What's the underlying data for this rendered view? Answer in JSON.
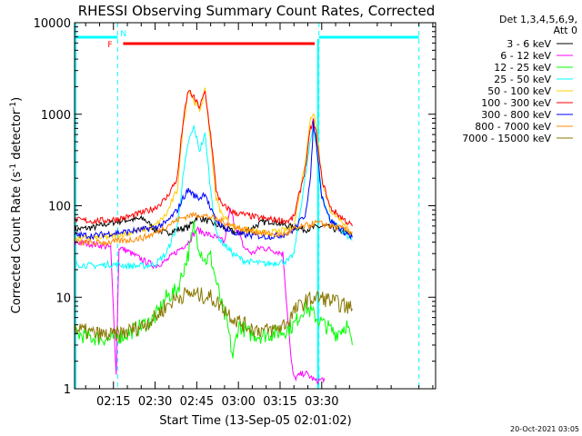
{
  "chart_data": {
    "type": "line",
    "title": "RHESSI Observing Summary Count Rates, Corrected",
    "xlabel": "Start Time (13-Sep-05 02:01:02)",
    "ylabel": "Corrected Count Rate (s",
    "ylabel_sup1": "-1",
    "ylabel_mid": " detector",
    "ylabel_sup2": "-1",
    "ylabel_end": ")",
    "yscale": "log",
    "ylim": [
      1,
      10000
    ],
    "xlim_min": [
      1,
      131
    ],
    "x_unit": "minutes from 02:00",
    "x_ticks": [
      {
        "min": 15,
        "label": "02:15"
      },
      {
        "min": 30,
        "label": "02:30"
      },
      {
        "min": 45,
        "label": "02:45"
      },
      {
        "min": 60,
        "label": "03:00"
      },
      {
        "min": 75,
        "label": "03:15"
      },
      {
        "min": 90,
        "label": "03:30"
      }
    ],
    "y_ticks": [
      {
        "value": 1,
        "label": "1"
      },
      {
        "value": 10,
        "label": "10"
      },
      {
        "value": 100,
        "label": "100"
      },
      {
        "value": 1000,
        "label": "1000"
      },
      {
        "value": 10000,
        "label": "10000"
      }
    ],
    "legend_header": [
      "Det 1,3,4,5,6,9,",
      "Att 0"
    ],
    "legend_position": "right",
    "series": [
      {
        "name": "3 - 6 keV",
        "color": "#000000",
        "points": [
          [
            1,
            55
          ],
          [
            8,
            58
          ],
          [
            14,
            65
          ],
          [
            20,
            70
          ],
          [
            26,
            72
          ],
          [
            30,
            55
          ],
          [
            34,
            50
          ],
          [
            38,
            55
          ],
          [
            42,
            58
          ],
          [
            45,
            75
          ],
          [
            48,
            70
          ],
          [
            52,
            62
          ],
          [
            56,
            55
          ],
          [
            60,
            50
          ],
          [
            64,
            55
          ],
          [
            68,
            65
          ],
          [
            72,
            68
          ],
          [
            76,
            62
          ],
          [
            80,
            58
          ],
          [
            84,
            55
          ],
          [
            88,
            58
          ],
          [
            91,
            60
          ],
          [
            95,
            55
          ],
          [
            99,
            50
          ],
          [
            101,
            48
          ]
        ]
      },
      {
        "name": "6 - 12 keV",
        "color": "#ff00ff",
        "points": [
          [
            1,
            40
          ],
          [
            8,
            38
          ],
          [
            14,
            35
          ],
          [
            16,
            1.4
          ],
          [
            17,
            35
          ],
          [
            20,
            32
          ],
          [
            26,
            25
          ],
          [
            30,
            22
          ],
          [
            34,
            25
          ],
          [
            38,
            32
          ],
          [
            42,
            40
          ],
          [
            45,
            55
          ],
          [
            48,
            50
          ],
          [
            52,
            45
          ],
          [
            55,
            40
          ],
          [
            57,
            90
          ],
          [
            59,
            60
          ],
          [
            62,
            35
          ],
          [
            65,
            30
          ],
          [
            68,
            35
          ],
          [
            72,
            33
          ],
          [
            76,
            30
          ],
          [
            79,
            2
          ],
          [
            80,
            1.3
          ],
          [
            84,
            1.5
          ],
          [
            88,
            1.2
          ],
          [
            91,
            1.3
          ]
        ]
      },
      {
        "name": "12 - 25 keV",
        "color": "#00ff00",
        "points": [
          [
            1,
            4
          ],
          [
            8,
            3.6
          ],
          [
            14,
            3.5
          ],
          [
            20,
            4
          ],
          [
            26,
            5
          ],
          [
            30,
            6
          ],
          [
            34,
            10
          ],
          [
            38,
            12
          ],
          [
            42,
            30
          ],
          [
            44,
            60
          ],
          [
            45,
            45
          ],
          [
            46,
            35
          ],
          [
            48,
            25
          ],
          [
            50,
            28
          ],
          [
            52,
            15
          ],
          [
            54,
            8
          ],
          [
            56,
            5
          ],
          [
            58,
            2.2
          ],
          [
            60,
            5
          ],
          [
            64,
            4
          ],
          [
            68,
            3.8
          ],
          [
            72,
            4
          ],
          [
            76,
            4.2
          ],
          [
            80,
            5
          ],
          [
            84,
            8
          ],
          [
            88,
            6
          ],
          [
            91,
            5
          ],
          [
            95,
            4
          ],
          [
            99,
            5
          ],
          [
            101,
            3
          ]
        ]
      },
      {
        "name": "25 - 50 keV",
        "color": "#00ffff",
        "points": [
          [
            1,
            23
          ],
          [
            8,
            22
          ],
          [
            14,
            23
          ],
          [
            20,
            22
          ],
          [
            26,
            22
          ],
          [
            30,
            23
          ],
          [
            34,
            30
          ],
          [
            38,
            60
          ],
          [
            40,
            200
          ],
          [
            42,
            500
          ],
          [
            44,
            720
          ],
          [
            46,
            400
          ],
          [
            48,
            600
          ],
          [
            50,
            150
          ],
          [
            52,
            50
          ],
          [
            54,
            40
          ],
          [
            56,
            35
          ],
          [
            58,
            30
          ],
          [
            62,
            25
          ],
          [
            66,
            24
          ],
          [
            70,
            23
          ],
          [
            74,
            24
          ],
          [
            78,
            25
          ],
          [
            80,
            30
          ],
          [
            84,
            200
          ],
          [
            86,
            520
          ],
          [
            87,
            740
          ],
          [
            88,
            480
          ],
          [
            90,
            130
          ],
          [
            93,
            70
          ],
          [
            97,
            55
          ],
          [
            101,
            42
          ]
        ]
      },
      {
        "name": "50 - 100 keV",
        "color": "#ffcc00",
        "points": [
          [
            1,
            45
          ],
          [
            8,
            44
          ],
          [
            14,
            46
          ],
          [
            20,
            50
          ],
          [
            26,
            55
          ],
          [
            30,
            60
          ],
          [
            34,
            80
          ],
          [
            38,
            150
          ],
          [
            40,
            700
          ],
          [
            42,
            1900
          ],
          [
            44,
            1400
          ],
          [
            46,
            1100
          ],
          [
            48,
            1800
          ],
          [
            50,
            500
          ],
          [
            52,
            120
          ],
          [
            54,
            80
          ],
          [
            56,
            70
          ],
          [
            58,
            60
          ],
          [
            62,
            55
          ],
          [
            66,
            52
          ],
          [
            70,
            50
          ],
          [
            74,
            52
          ],
          [
            78,
            55
          ],
          [
            80,
            60
          ],
          [
            84,
            300
          ],
          [
            86,
            900
          ],
          [
            87,
            1050
          ],
          [
            88,
            800
          ],
          [
            90,
            200
          ],
          [
            93,
            90
          ],
          [
            97,
            70
          ],
          [
            101,
            48
          ]
        ]
      },
      {
        "name": "100 - 300 keV",
        "color": "#ff0000",
        "points": [
          [
            1,
            70
          ],
          [
            8,
            68
          ],
          [
            14,
            70
          ],
          [
            20,
            75
          ],
          [
            26,
            85
          ],
          [
            30,
            95
          ],
          [
            34,
            120
          ],
          [
            38,
            200
          ],
          [
            40,
            800
          ],
          [
            42,
            1850
          ],
          [
            44,
            1500
          ],
          [
            46,
            1200
          ],
          [
            48,
            1750
          ],
          [
            50,
            600
          ],
          [
            52,
            150
          ],
          [
            54,
            100
          ],
          [
            56,
            95
          ],
          [
            58,
            85
          ],
          [
            62,
            80
          ],
          [
            66,
            75
          ],
          [
            70,
            72
          ],
          [
            74,
            70
          ],
          [
            78,
            68
          ],
          [
            80,
            75
          ],
          [
            84,
            250
          ],
          [
            86,
            700
          ],
          [
            87,
            850
          ],
          [
            88,
            600
          ],
          [
            90,
            200
          ],
          [
            93,
            95
          ],
          [
            97,
            75
          ],
          [
            101,
            60
          ]
        ]
      },
      {
        "name": "300 - 800 keV",
        "color": "#0000ff",
        "points": [
          [
            1,
            48
          ],
          [
            8,
            47
          ],
          [
            14,
            50
          ],
          [
            20,
            52
          ],
          [
            26,
            55
          ],
          [
            30,
            58
          ],
          [
            34,
            65
          ],
          [
            38,
            90
          ],
          [
            40,
            120
          ],
          [
            42,
            150
          ],
          [
            44,
            130
          ],
          [
            46,
            120
          ],
          [
            48,
            140
          ],
          [
            50,
            90
          ],
          [
            52,
            70
          ],
          [
            54,
            60
          ],
          [
            56,
            55
          ],
          [
            58,
            50
          ],
          [
            62,
            48
          ],
          [
            66,
            47
          ],
          [
            70,
            46
          ],
          [
            74,
            47
          ],
          [
            78,
            50
          ],
          [
            80,
            55
          ],
          [
            84,
            80
          ],
          [
            86,
            200
          ],
          [
            87,
            800
          ],
          [
            88,
            500
          ],
          [
            90,
            130
          ],
          [
            93,
            70
          ],
          [
            97,
            55
          ],
          [
            101,
            45
          ]
        ]
      },
      {
        "name": "800 - 7000 keV",
        "color": "#ff8800",
        "points": [
          [
            1,
            40
          ],
          [
            8,
            39
          ],
          [
            14,
            40
          ],
          [
            20,
            42
          ],
          [
            26,
            45
          ],
          [
            30,
            50
          ],
          [
            34,
            60
          ],
          [
            38,
            70
          ],
          [
            42,
            78
          ],
          [
            46,
            80
          ],
          [
            50,
            75
          ],
          [
            54,
            68
          ],
          [
            58,
            60
          ],
          [
            62,
            55
          ],
          [
            66,
            52
          ],
          [
            70,
            50
          ],
          [
            74,
            48
          ],
          [
            78,
            50
          ],
          [
            80,
            55
          ],
          [
            84,
            60
          ],
          [
            88,
            65
          ],
          [
            92,
            62
          ],
          [
            96,
            58
          ],
          [
            101,
            52
          ]
        ]
      },
      {
        "name": "7000 - 15000 keV",
        "color": "#887700",
        "points": [
          [
            1,
            4.5
          ],
          [
            8,
            4
          ],
          [
            14,
            3.8
          ],
          [
            20,
            4.2
          ],
          [
            26,
            5
          ],
          [
            30,
            6
          ],
          [
            34,
            8
          ],
          [
            38,
            10
          ],
          [
            42,
            11
          ],
          [
            46,
            10.5
          ],
          [
            50,
            10
          ],
          [
            54,
            8
          ],
          [
            58,
            6
          ],
          [
            62,
            5
          ],
          [
            66,
            4.5
          ],
          [
            70,
            4.3
          ],
          [
            74,
            4.5
          ],
          [
            78,
            5.5
          ],
          [
            80,
            7
          ],
          [
            84,
            9
          ],
          [
            88,
            10
          ],
          [
            92,
            9.5
          ],
          [
            96,
            8.5
          ],
          [
            101,
            7.5
          ]
        ]
      }
    ],
    "annotations": {
      "flag_F": "F",
      "flag_N": "N",
      "date_stamp": "20-Oct-2021 03:05"
    }
  },
  "colors": {
    "axis": "#000000",
    "night_bar": "#00ffff",
    "flare_bar": "#ff0000",
    "flare_label": "#ff0000",
    "night_label": "#00ffff"
  }
}
